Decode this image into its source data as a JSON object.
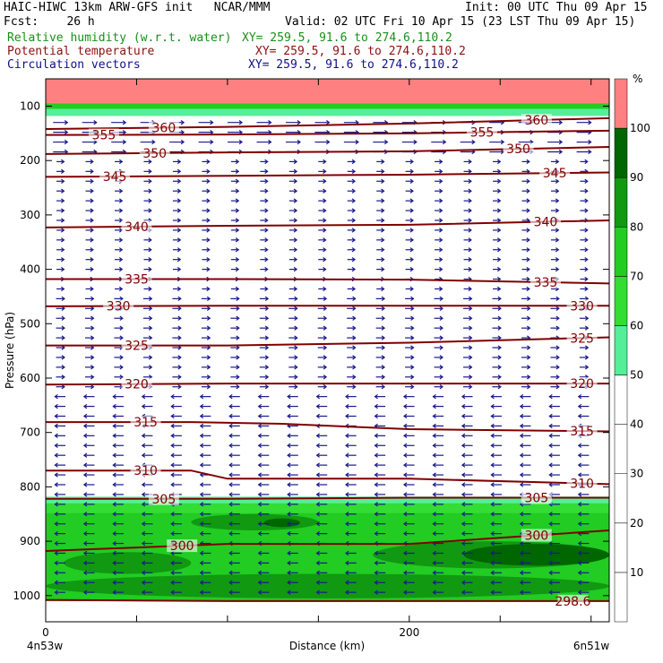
{
  "header": {
    "line1_left": "HAIC-HIWC 13km ARW-GFS init   NCAR/MMM",
    "line1_right": "Init: 00 UTC Thu 09 Apr 15",
    "line2_left": "Fcst:    26 h",
    "line2_right": "Valid: 02 UTC Fri 10 Apr 15 (23 LST Thu 09 Apr 15)",
    "rh_label": "Relative humidity (w.r.t. water)",
    "rh_xy": "XY= 259.5, 91.6 to 274.6,110.2",
    "pt_label": "Potential temperature",
    "pt_xy": "XY= 259.5, 91.6 to 274.6,110.2",
    "cv_label": "Circulation vectors",
    "cv_xy": "XY= 259.5, 91.6 to 274.6,110.2"
  },
  "colors": {
    "theta": "#800000",
    "vector": "#1a1a8c",
    "rh_levels": [
      "#ffffff",
      "#ffffff",
      "#ffffff",
      "#ffffff",
      "#ffffff",
      "#55ee99",
      "#33dd33",
      "#22cc22",
      "#119911",
      "#006600",
      "#ff8080"
    ]
  },
  "chart_data": {
    "type": "heatmap",
    "title": "",
    "xlabel": "Distance (km)",
    "ylabel": "Pressure (hPa)",
    "xlim": [
      0,
      310
    ],
    "ylim": [
      1045,
      50
    ],
    "x_ticks": [
      "0",
      "200"
    ],
    "y_ticks": [
      100,
      200,
      300,
      400,
      500,
      600,
      700,
      800,
      900,
      1000
    ],
    "x_endpoint_left": "4n53w",
    "x_endpoint_right": "6n51w",
    "colorbar": {
      "unit": "%",
      "levels": [
        0,
        10,
        20,
        30,
        40,
        50,
        60,
        70,
        80,
        90,
        100
      ],
      "tick_labels": [
        "10",
        "20",
        "30",
        "40",
        "50",
        "60",
        "70",
        "80",
        "90",
        "100"
      ]
    },
    "rh_bands": [
      {
        "p_top": 50,
        "p_bottom": 95,
        "rh": 100
      },
      {
        "p_top": 95,
        "p_bottom": 105,
        "rh": 70
      },
      {
        "p_top": 105,
        "p_bottom": 118,
        "rh": 55
      },
      {
        "p_top": 818,
        "p_bottom": 830,
        "rh": 55
      },
      {
        "p_top": 830,
        "p_bottom": 848,
        "rh": 65
      },
      {
        "p_top": 848,
        "p_bottom": 1010,
        "rh": 75
      }
    ],
    "rh_patches": [
      {
        "x1": 80,
        "x2": 150,
        "p_top": 850,
        "p_bottom": 880,
        "rh": 85
      },
      {
        "x1": 120,
        "x2": 140,
        "p_top": 858,
        "p_bottom": 874,
        "rh": 95
      },
      {
        "x1": 10,
        "x2": 80,
        "p_top": 920,
        "p_bottom": 960,
        "rh": 85
      },
      {
        "x1": 180,
        "x2": 310,
        "p_top": 900,
        "p_bottom": 950,
        "rh": 85
      },
      {
        "x1": 230,
        "x2": 310,
        "p_top": 905,
        "p_bottom": 945,
        "rh": 95
      },
      {
        "x1": 0,
        "x2": 310,
        "p_top": 960,
        "p_bottom": 1005,
        "rh": 82
      }
    ],
    "theta_contours": [
      {
        "value": "360",
        "x": [
          0,
          100,
          200,
          310
        ],
        "p": [
          142,
          138,
          132,
          122
        ],
        "labels": [
          {
            "x": 65,
            "text": "360"
          },
          {
            "x": 270,
            "text": "360"
          }
        ]
      },
      {
        "value": "355",
        "x": [
          0,
          100,
          200,
          310
        ],
        "p": [
          153,
          152,
          150,
          145
        ],
        "labels": [
          {
            "x": 32,
            "text": "355"
          },
          {
            "x": 240,
            "text": "355"
          }
        ]
      },
      {
        "value": "350",
        "x": [
          0,
          100,
          200,
          310
        ],
        "p": [
          188,
          185,
          183,
          175
        ],
        "labels": [
          {
            "x": 60,
            "text": "350"
          },
          {
            "x": 260,
            "text": "350"
          }
        ]
      },
      {
        "value": "345",
        "x": [
          0,
          100,
          200,
          310
        ],
        "p": [
          230,
          228,
          226,
          222
        ],
        "labels": [
          {
            "x": 38,
            "text": "345"
          },
          {
            "x": 280,
            "text": "345"
          }
        ]
      },
      {
        "value": "340",
        "x": [
          0,
          100,
          200,
          310
        ],
        "p": [
          323,
          320,
          318,
          310
        ],
        "labels": [
          {
            "x": 50,
            "text": "340"
          },
          {
            "x": 275,
            "text": "340"
          }
        ]
      },
      {
        "value": "335",
        "x": [
          0,
          100,
          200,
          310
        ],
        "p": [
          418,
          418,
          419,
          426
        ],
        "labels": [
          {
            "x": 50,
            "text": "335"
          },
          {
            "x": 275,
            "text": "335"
          }
        ]
      },
      {
        "value": "330",
        "x": [
          0,
          100,
          200,
          310
        ],
        "p": [
          468,
          467,
          467,
          467
        ],
        "labels": [
          {
            "x": 40,
            "text": "330"
          },
          {
            "x": 295,
            "text": "330"
          }
        ]
      },
      {
        "value": "325",
        "x": [
          0,
          100,
          200,
          310
        ],
        "p": [
          540,
          540,
          535,
          525
        ],
        "labels": [
          {
            "x": 50,
            "text": "325"
          },
          {
            "x": 295,
            "text": "325"
          }
        ]
      },
      {
        "value": "320",
        "x": [
          0,
          100,
          200,
          310
        ],
        "p": [
          612,
          610,
          610,
          610
        ],
        "labels": [
          {
            "x": 50,
            "text": "320"
          },
          {
            "x": 295,
            "text": "320"
          }
        ]
      },
      {
        "value": "315",
        "x": [
          0,
          80,
          130,
          200,
          310
        ],
        "p": [
          681,
          681,
          684,
          694,
          698
        ],
        "labels": [
          {
            "x": 55,
            "text": "315"
          },
          {
            "x": 295,
            "text": "315"
          }
        ]
      },
      {
        "value": "310",
        "x": [
          0,
          80,
          100,
          200,
          310
        ],
        "p": [
          770,
          770,
          785,
          785,
          795
        ],
        "labels": [
          {
            "x": 55,
            "text": "310"
          },
          {
            "x": 295,
            "text": "310"
          }
        ]
      },
      {
        "value": "305",
        "x": [
          0,
          100,
          200,
          310
        ],
        "p": [
          822,
          822,
          820,
          820
        ],
        "labels": [
          {
            "x": 65,
            "text": "305"
          },
          {
            "x": 270,
            "text": "305"
          }
        ]
      },
      {
        "value": "300",
        "x": [
          0,
          100,
          200,
          310
        ],
        "p": [
          918,
          905,
          905,
          880
        ],
        "labels": [
          {
            "x": 75,
            "text": "300"
          },
          {
            "x": 270,
            "text": "300"
          }
        ]
      },
      {
        "value": "298.6",
        "x": [
          0,
          100,
          200,
          310
        ],
        "p": [
          1008,
          1010,
          1010,
          1010
        ],
        "labels": [
          {
            "x": 290,
            "text": "298.6"
          }
        ]
      }
    ],
    "wind_vectors": {
      "direction_by_layer": [
        {
          "p_top": 120,
          "p_bottom": 200,
          "u": 1
        },
        {
          "p_top": 200,
          "p_bottom": 450,
          "u": 0.3
        },
        {
          "p_top": 450,
          "p_bottom": 620,
          "u": 0.4
        },
        {
          "p_top": 620,
          "p_bottom": 1010,
          "u": -0.6
        }
      ]
    }
  }
}
